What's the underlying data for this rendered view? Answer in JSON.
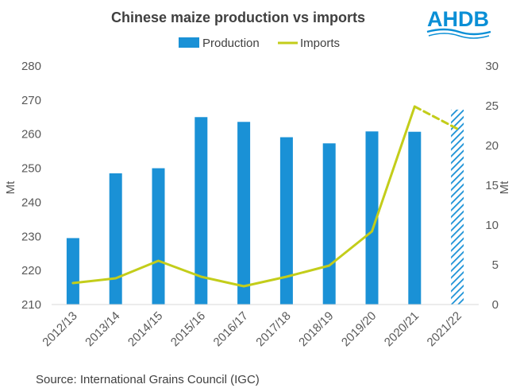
{
  "chart_data": {
    "type": "bar",
    "title": "Chinese maize production vs imports",
    "categories": [
      "2012/13",
      "2013/14",
      "2014/15",
      "2015/16",
      "2016/17",
      "2017/18",
      "2018/19",
      "2019/20",
      "2020/21",
      "2021/22"
    ],
    "series": [
      {
        "name": "Production",
        "type": "bar",
        "axis": "left",
        "values": [
          229.5,
          248.5,
          250.0,
          265.0,
          263.6,
          259.1,
          257.3,
          260.8,
          260.7,
          267.2
        ],
        "forecast_index": 9
      },
      {
        "name": "Imports",
        "type": "line",
        "axis": "right",
        "values": [
          2.7,
          3.3,
          5.5,
          3.5,
          2.3,
          3.5,
          4.9,
          9.2,
          24.9,
          22.1
        ],
        "forecast_from_index": 8
      }
    ],
    "ylabel": "Mt",
    "ylabel_right": "Mt",
    "ylim": [
      210,
      280
    ],
    "ylim_right": [
      0,
      30
    ],
    "yticks": [
      "210",
      "220",
      "230",
      "240",
      "250",
      "260",
      "270",
      "280"
    ],
    "yticks_right": [
      "0",
      "5",
      "10",
      "15",
      "20",
      "25",
      "30"
    ],
    "grid": false,
    "legend_position": "top-center"
  },
  "source_text": "Source: International Grains Council (IGC)",
  "logo": {
    "text": "AHDB",
    "color": "#0a8fd6"
  },
  "colors": {
    "bar": "#1a91d6",
    "line": "#c3cd1a",
    "text": "#595959"
  }
}
